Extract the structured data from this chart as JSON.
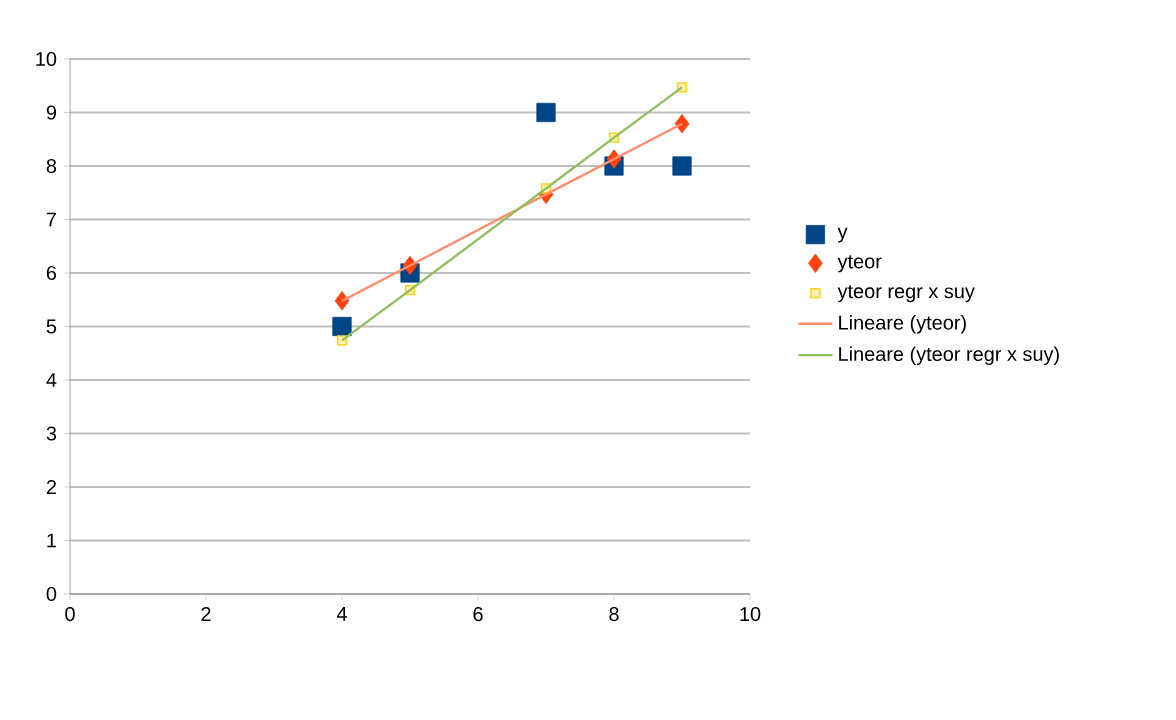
{
  "chart_data": {
    "type": "scatter",
    "xlim": [
      0,
      10
    ],
    "ylim": [
      0,
      10
    ],
    "xticks": [
      0,
      2,
      4,
      6,
      8,
      10
    ],
    "yticks": [
      0,
      1,
      2,
      3,
      4,
      5,
      6,
      7,
      8,
      9,
      10
    ],
    "grid": "y",
    "legend": "right",
    "x": [
      4,
      5,
      7,
      8,
      9
    ],
    "series": [
      {
        "name": "y",
        "color": "#004586",
        "marker": "square",
        "values": [
          5,
          6,
          9,
          8,
          8
        ]
      },
      {
        "name": "yteor",
        "color": "#ff420e",
        "marker": "diamond",
        "values": [
          5.48,
          6.14,
          7.47,
          8.13,
          8.79
        ]
      },
      {
        "name": "yteor regr x suy",
        "color": "#ffd320",
        "marker": "square",
        "values": [
          4.74,
          5.68,
          7.58,
          8.53,
          9.47
        ]
      },
      {
        "name": "Lineare (yteor)",
        "type": "line",
        "color": "#ff8f6f",
        "marker": "none",
        "values": [
          5.48,
          6.14,
          7.47,
          8.13,
          8.79
        ]
      },
      {
        "name": "Lineare (yteor regr x suy)",
        "type": "line",
        "color": "#8fbf5f",
        "marker": "none",
        "values": [
          4.74,
          5.68,
          7.58,
          8.53,
          9.47
        ]
      }
    ]
  }
}
